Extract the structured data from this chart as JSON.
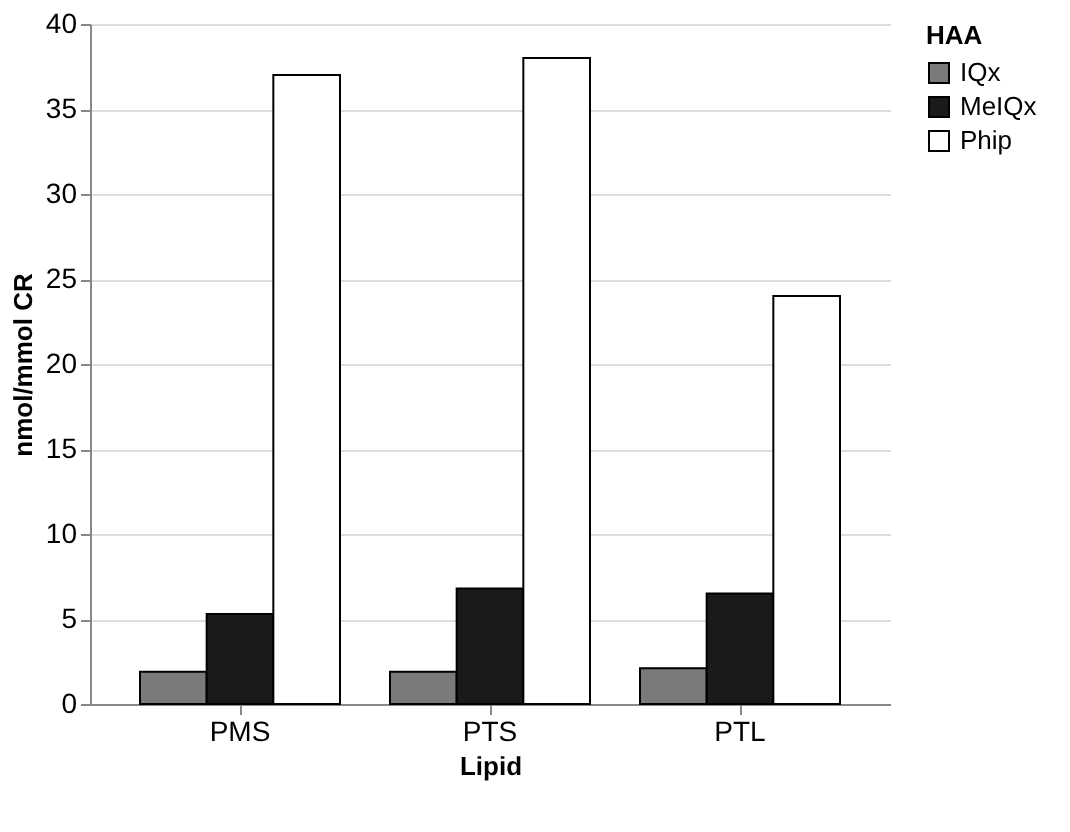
{
  "chart_data": {
    "type": "bar",
    "xlabel": "Lipid",
    "ylabel": "nmol/mmol CR",
    "legend_title": "HAA",
    "categories": [
      "PMS",
      "PTS",
      "PTL"
    ],
    "series": [
      {
        "name": "IQx",
        "color": "#7a7a7a",
        "values": [
          1.9,
          1.9,
          2.1
        ]
      },
      {
        "name": "MeIQx",
        "color": "#1a1a1a",
        "values": [
          5.3,
          6.8,
          6.5
        ]
      },
      {
        "name": "Phip",
        "color": "#ffffff",
        "values": [
          37,
          38,
          24
        ]
      }
    ],
    "ylim": [
      0,
      40
    ],
    "yticks": [
      0,
      5,
      10,
      15,
      20,
      25,
      30,
      35,
      40
    ],
    "grid": "y",
    "legend": "right"
  }
}
